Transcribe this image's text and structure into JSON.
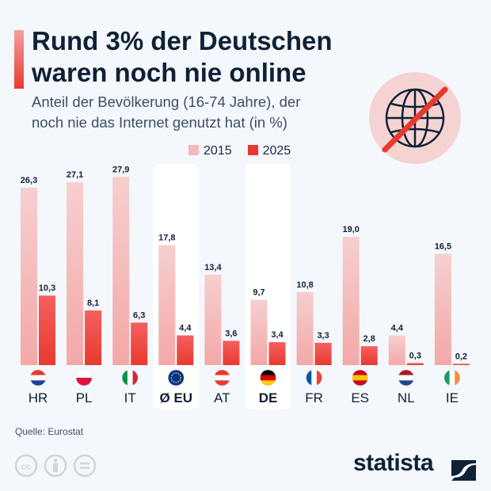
{
  "title": {
    "line1": "Rund 3% der Deutschen",
    "line2": "waren noch nie online"
  },
  "subtitle": {
    "line1": "Anteil der Bevölkerung (16-74 Jahre), der",
    "line2": "noch nie das Internet genutzt hat (in %)"
  },
  "icon": "no-internet-globe-icon",
  "colors": {
    "s2015": "#f4b8b8",
    "s2025": "#e8392f",
    "highlight": "#ffffff",
    "text": "#0f2137"
  },
  "chart_data": {
    "type": "bar",
    "categories": [
      "HR",
      "PL",
      "IT",
      "Ø EU",
      "AT",
      "DE",
      "FR",
      "ES",
      "NL",
      "IE"
    ],
    "flags": [
      "croatia-flag",
      "poland-flag",
      "italy-flag",
      "eu-flag",
      "austria-flag",
      "germany-flag",
      "france-flag",
      "spain-flag",
      "netherlands-flag",
      "ireland-flag"
    ],
    "highlighted": [
      "Ø EU",
      "DE"
    ],
    "series": [
      {
        "name": "2015",
        "values": [
          26.3,
          27.1,
          27.9,
          17.8,
          13.4,
          9.7,
          10.8,
          19.0,
          4.4,
          16.5
        ]
      },
      {
        "name": "2025",
        "values": [
          10.3,
          8.1,
          6.3,
          4.4,
          3.6,
          3.4,
          3.3,
          2.8,
          0.3,
          0.2
        ]
      }
    ],
    "legend_position": "top",
    "grid": false,
    "decimal_separator": ","
  },
  "footer": {
    "source": "Quelle: Eurostat",
    "brand": "statista",
    "license_icons": [
      "cc-icon",
      "by-icon",
      "nd-icon"
    ]
  }
}
